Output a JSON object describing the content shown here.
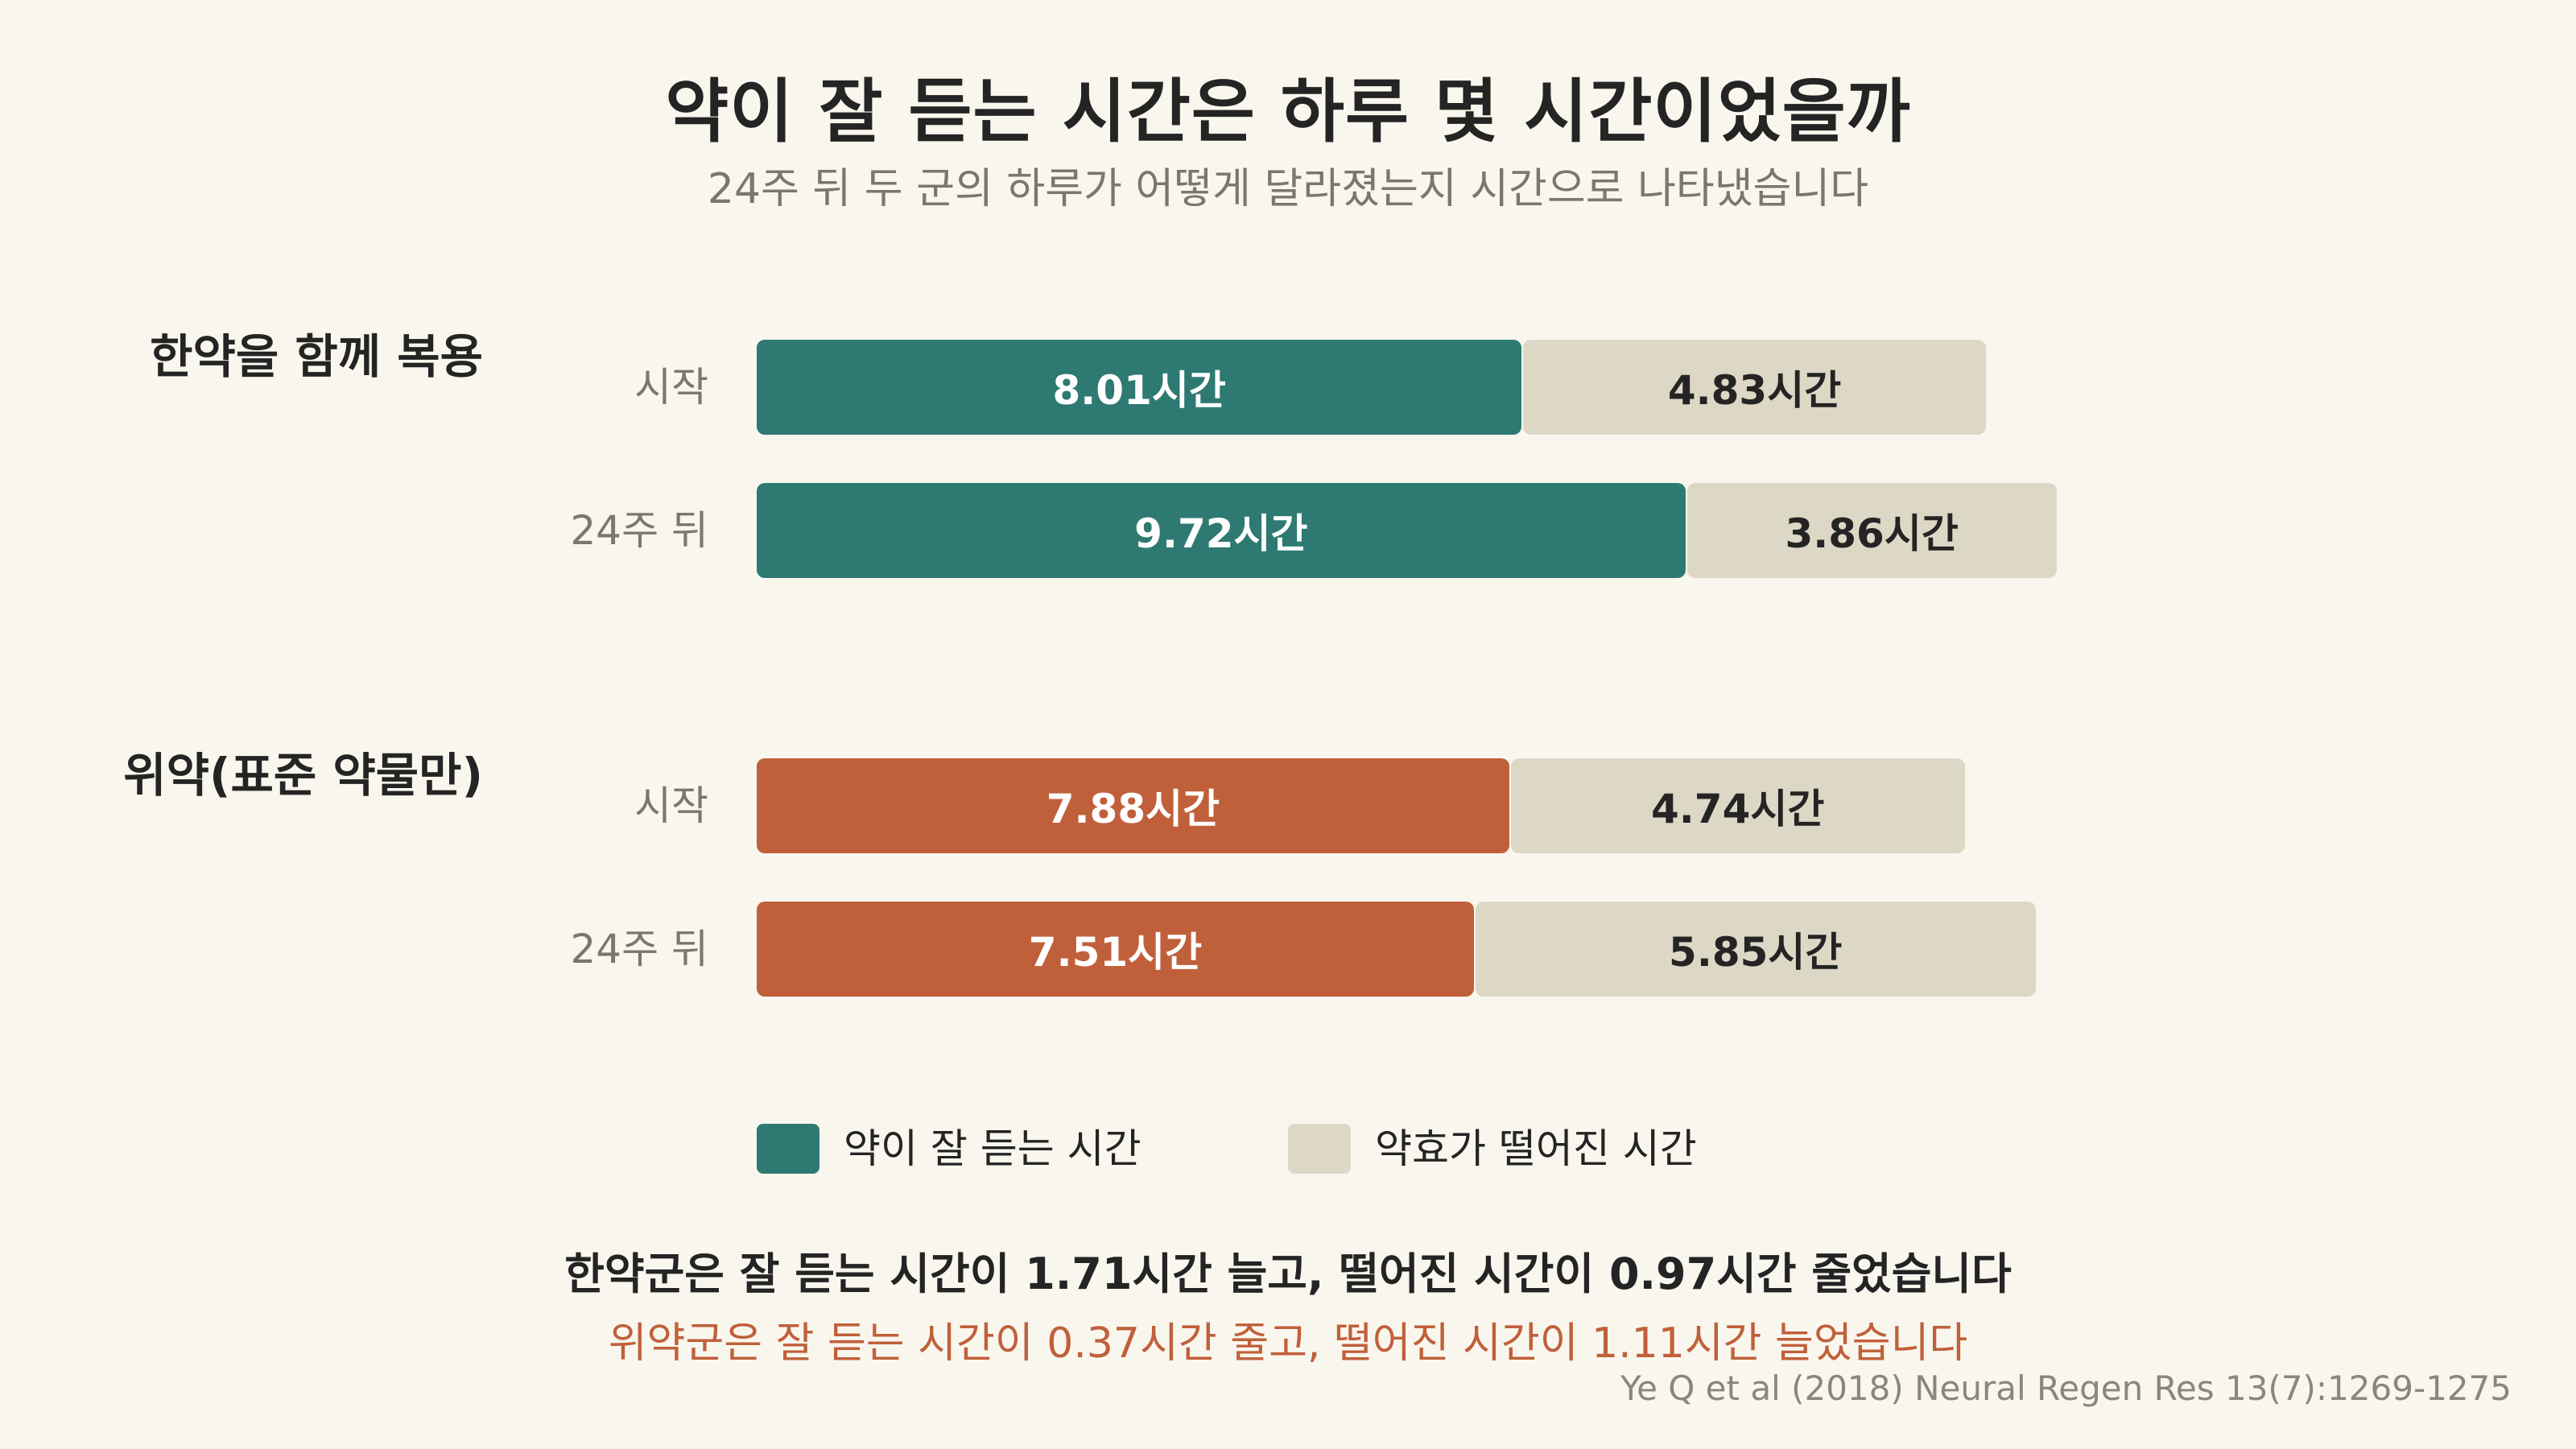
{
  "title": "약이 잘 듣는 시간은 하루 몇 시간이었을까",
  "subtitle": "24주 뒤 두 군의 하루가 어떻게 달라졌는지 시간으로 나타냈습니다",
  "colors": {
    "herbal": "#2e7a72",
    "placebo": "#c0603a",
    "wane": "#ddd7c6"
  },
  "chart_data": {
    "type": "bar",
    "orientation": "horizontal",
    "stacked": true,
    "unit": "시간",
    "groups": [
      {
        "name": "한약을 함께 복용",
        "rows": [
          {
            "label": "시작",
            "on": 8.01,
            "off": 4.83,
            "on_text": "8.01시간",
            "off_text": "4.83시간"
          },
          {
            "label": "24주 뒤",
            "on": 9.72,
            "off": 3.86,
            "on_text": "9.72시간",
            "off_text": "3.86시간"
          }
        ]
      },
      {
        "name": "위약(표준 약물만)",
        "rows": [
          {
            "label": "시작",
            "on": 7.88,
            "off": 4.74,
            "on_text": "7.88시간",
            "off_text": "4.74시간"
          },
          {
            "label": "24주 뒤",
            "on": 7.51,
            "off": 5.85,
            "on_text": "7.51시간",
            "off_text": "5.85시간"
          }
        ]
      }
    ],
    "series": [
      {
        "name": "약이 잘 듣는 시간"
      },
      {
        "name": "약효가 떨어진 시간"
      }
    ],
    "legend_position": "bottom"
  },
  "notes": {
    "herbal": "한약군은 잘 듣는 시간이 1.71시간 늘고, 떨어진 시간이 0.97시간 줄었습니다",
    "placebo": "위약군은 잘 듣는 시간이 0.37시간 줄고, 떨어진 시간이 1.11시간 늘었습니다"
  },
  "source": "Ye Q et al (2018) Neural Regen Res 13(7):1269-1275"
}
